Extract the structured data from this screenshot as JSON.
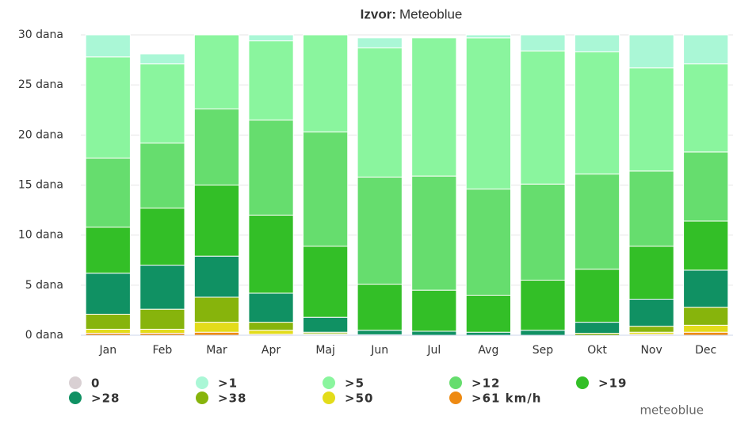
{
  "chart_data": {
    "type": "stacked_bar",
    "title_prefix": "Izvor:",
    "title": "Meteoblue",
    "watermark": "meteoblue",
    "categories": [
      "Jan",
      "Feb",
      "Mar",
      "Apr",
      "Maj",
      "Jun",
      "Jul",
      "Avg",
      "Sep",
      "Okt",
      "Nov",
      "Dec"
    ],
    "series": [
      {
        "name": "0",
        "color": "#d9d0d3",
        "values": [
          0,
          0,
          0,
          0,
          0,
          0,
          0,
          0,
          0,
          0,
          0,
          0
        ]
      },
      {
        "name": ">1",
        "color": "#aaf7d6",
        "values": [
          2.2,
          1.0,
          0,
          0.6,
          0,
          1.0,
          0,
          0.3,
          1.6,
          1.7,
          3.3,
          2.9
        ]
      },
      {
        "name": ">5",
        "color": "#8af59e",
        "values": [
          10.1,
          7.9,
          7.4,
          7.9,
          9.7,
          12.9,
          13.8,
          15.1,
          13.3,
          12.2,
          10.3,
          8.8
        ]
      },
      {
        "name": ">12",
        "color": "#66dd6e",
        "values": [
          6.9,
          6.5,
          7.6,
          9.5,
          11.4,
          10.7,
          11.4,
          10.6,
          9.6,
          9.5,
          7.5,
          6.9
        ]
      },
      {
        "name": ">19",
        "color": "#33bf27",
        "values": [
          4.6,
          5.7,
          7.1,
          7.8,
          7.1,
          4.6,
          4.1,
          3.7,
          5.0,
          5.3,
          5.3,
          4.9
        ]
      },
      {
        "name": ">28",
        "color": "#109163",
        "values": [
          4.1,
          4.4,
          4.1,
          2.9,
          1.5,
          0.45,
          0.4,
          0.3,
          0.5,
          1.1,
          2.7,
          3.7
        ]
      },
      {
        "name": ">38",
        "color": "#87b40c",
        "values": [
          1.5,
          2.0,
          2.5,
          0.8,
          0.15,
          0.05,
          0,
          0,
          0,
          0.2,
          0.6,
          1.8
        ]
      },
      {
        "name": ">50",
        "color": "#e3dc1a",
        "values": [
          0.4,
          0.4,
          1.0,
          0.4,
          0.1,
          0,
          0,
          0,
          0,
          0,
          0.2,
          0.7
        ]
      },
      {
        "name": ">61 km/h",
        "color": "#ee8a12",
        "values": [
          0.2,
          0.2,
          0.3,
          0.1,
          0.05,
          0,
          0,
          0,
          0,
          0,
          0.1,
          0.3
        ]
      }
    ],
    "ylim": [
      0,
      30
    ],
    "yticks": [
      {
        "value": 0,
        "label": "0 dana"
      },
      {
        "value": 5,
        "label": "5 dana"
      },
      {
        "value": 10,
        "label": "10 dana"
      },
      {
        "value": 15,
        "label": "15 dana"
      },
      {
        "value": 20,
        "label": "20 dana"
      },
      {
        "value": 25,
        "label": "25 dana"
      },
      {
        "value": 30,
        "label": "30 dana"
      }
    ],
    "grid": true
  }
}
